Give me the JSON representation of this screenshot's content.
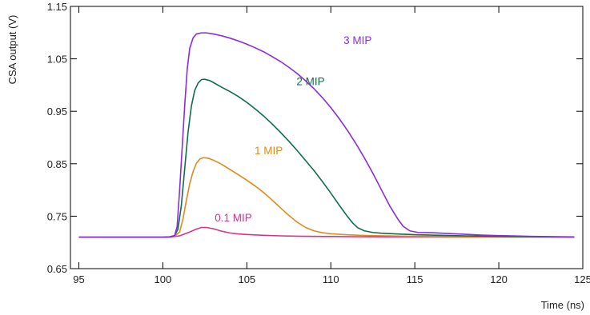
{
  "chart_data": {
    "type": "line",
    "title": "",
    "xlabel": "Time (ns)",
    "ylabel": "CSA output (V)",
    "xlim": [
      94.5,
      125
    ],
    "ylim": [
      0.65,
      1.15
    ],
    "x_ticks": [
      95,
      100,
      105,
      110,
      115,
      120,
      125
    ],
    "x_tick_labels": [
      "95",
      "100",
      "105",
      "110",
      "115",
      "120",
      "125"
    ],
    "y_ticks": [
      0.65,
      0.75,
      0.85,
      0.95,
      1.05,
      1.15
    ],
    "y_tick_labels": [
      "0.65",
      "0.75",
      "0.85",
      "0.95",
      "1.05",
      "1.15"
    ],
    "grid": false,
    "legend": "inline labels",
    "series": [
      {
        "name": "0.1 MIP",
        "color": "#d6338c",
        "label_at": [
          104.2,
          0.74
        ],
        "points": [
          [
            95,
            0.71
          ],
          [
            100,
            0.71
          ],
          [
            100.5,
            0.7102
          ],
          [
            101,
            0.7125
          ],
          [
            101.5,
            0.7185
          ],
          [
            102,
            0.7255
          ],
          [
            102.3,
            0.7285
          ],
          [
            102.6,
            0.7285
          ],
          [
            103,
            0.726
          ],
          [
            103.5,
            0.7215
          ],
          [
            104,
            0.718
          ],
          [
            104.5,
            0.716
          ],
          [
            105,
            0.715
          ],
          [
            106,
            0.7135
          ],
          [
            107,
            0.7125
          ],
          [
            108,
            0.7118
          ],
          [
            110,
            0.7112
          ],
          [
            112,
            0.7108
          ],
          [
            115,
            0.7105
          ],
          [
            118,
            0.7103
          ],
          [
            121,
            0.7102
          ],
          [
            124.5,
            0.7101
          ]
        ]
      },
      {
        "name": "1 MIP",
        "color": "#e08a1a",
        "label_at": [
          106.3,
          0.868
        ],
        "points": [
          [
            95,
            0.71
          ],
          [
            100,
            0.71
          ],
          [
            100.4,
            0.7105
          ],
          [
            100.7,
            0.712
          ],
          [
            101,
            0.72
          ],
          [
            101.2,
            0.745
          ],
          [
            101.4,
            0.78
          ],
          [
            101.6,
            0.812
          ],
          [
            101.8,
            0.835
          ],
          [
            102,
            0.851
          ],
          [
            102.2,
            0.859
          ],
          [
            102.4,
            0.8615
          ],
          [
            102.6,
            0.861
          ],
          [
            102.8,
            0.8595
          ],
          [
            103,
            0.857
          ],
          [
            103.5,
            0.849
          ],
          [
            104,
            0.839
          ],
          [
            104.5,
            0.829
          ],
          [
            105,
            0.8185
          ],
          [
            105.5,
            0.8075
          ],
          [
            106,
            0.795
          ],
          [
            106.5,
            0.781
          ],
          [
            107,
            0.766
          ],
          [
            107.5,
            0.7515
          ],
          [
            108,
            0.7385
          ],
          [
            108.5,
            0.7285
          ],
          [
            109,
            0.722
          ],
          [
            109.5,
            0.7185
          ],
          [
            110,
            0.7165
          ],
          [
            111,
            0.7145
          ],
          [
            112,
            0.7132
          ],
          [
            114,
            0.712
          ],
          [
            117,
            0.7112
          ],
          [
            120,
            0.7106
          ],
          [
            124.5,
            0.7102
          ]
        ]
      },
      {
        "name": "2 MIP",
        "color": "#0f6e4a",
        "label_at": [
          108.8,
          1.0
        ],
        "points": [
          [
            95,
            0.71
          ],
          [
            100,
            0.71
          ],
          [
            100.4,
            0.7105
          ],
          [
            100.7,
            0.713
          ],
          [
            100.9,
            0.725
          ],
          [
            101.1,
            0.77
          ],
          [
            101.3,
            0.84
          ],
          [
            101.5,
            0.91
          ],
          [
            101.7,
            0.96
          ],
          [
            101.9,
            0.99
          ],
          [
            102.1,
            1.004
          ],
          [
            102.3,
            1.0105
          ],
          [
            102.5,
            1.011
          ],
          [
            102.8,
            1.0085
          ],
          [
            103,
            1.005
          ],
          [
            103.5,
            0.996
          ],
          [
            104,
            0.9875
          ],
          [
            104.5,
            0.978
          ],
          [
            105,
            0.967
          ],
          [
            105.5,
            0.9545
          ],
          [
            106,
            0.941
          ],
          [
            106.5,
            0.926
          ],
          [
            107,
            0.91
          ],
          [
            107.5,
            0.893
          ],
          [
            108,
            0.875
          ],
          [
            108.5,
            0.856
          ],
          [
            109,
            0.837
          ],
          [
            109.5,
            0.816
          ],
          [
            110,
            0.794
          ],
          [
            110.5,
            0.771
          ],
          [
            111,
            0.749
          ],
          [
            111.3,
            0.737
          ],
          [
            111.6,
            0.728
          ],
          [
            112,
            0.722
          ],
          [
            112.5,
            0.719
          ],
          [
            113,
            0.7175
          ],
          [
            114,
            0.716
          ],
          [
            115,
            0.7148
          ],
          [
            116,
            0.714
          ],
          [
            118,
            0.7125
          ],
          [
            120,
            0.7115
          ],
          [
            122,
            0.7108
          ],
          [
            124.5,
            0.7103
          ]
        ]
      },
      {
        "name": "3 MIP",
        "color": "#8a2be2",
        "label_at": [
          111.6,
          1.078
        ],
        "points": [
          [
            95,
            0.71
          ],
          [
            100,
            0.71
          ],
          [
            100.4,
            0.7105
          ],
          [
            100.7,
            0.713
          ],
          [
            100.85,
            0.73
          ],
          [
            101,
            0.8
          ],
          [
            101.15,
            0.88
          ],
          [
            101.3,
            0.96
          ],
          [
            101.45,
            1.03
          ],
          [
            101.6,
            1.07
          ],
          [
            101.8,
            1.09
          ],
          [
            102,
            1.0975
          ],
          [
            102.3,
            1.0995
          ],
          [
            102.6,
            1.0995
          ],
          [
            103,
            1.0975
          ],
          [
            103.5,
            1.094
          ],
          [
            104,
            1.0895
          ],
          [
            104.5,
            1.084
          ],
          [
            105,
            1.078
          ],
          [
            105.5,
            1.071
          ],
          [
            106,
            1.0635
          ],
          [
            106.5,
            1.0545
          ],
          [
            107,
            1.045
          ],
          [
            107.5,
            1.034
          ],
          [
            108,
            1.022
          ],
          [
            108.5,
            1.008
          ],
          [
            109,
            0.993
          ],
          [
            109.5,
            0.976
          ],
          [
            110,
            0.957
          ],
          [
            110.5,
            0.936
          ],
          [
            111,
            0.913
          ],
          [
            111.5,
            0.888
          ],
          [
            112,
            0.861
          ],
          [
            112.5,
            0.832
          ],
          [
            113,
            0.801
          ],
          [
            113.5,
            0.77
          ],
          [
            114,
            0.744
          ],
          [
            114.3,
            0.731
          ],
          [
            114.7,
            0.722
          ],
          [
            115.2,
            0.719
          ],
          [
            116,
            0.7185
          ],
          [
            117,
            0.717
          ],
          [
            118,
            0.7155
          ],
          [
            119,
            0.714
          ],
          [
            120,
            0.713
          ],
          [
            122,
            0.7115
          ],
          [
            124.5,
            0.7105
          ]
        ]
      }
    ]
  }
}
